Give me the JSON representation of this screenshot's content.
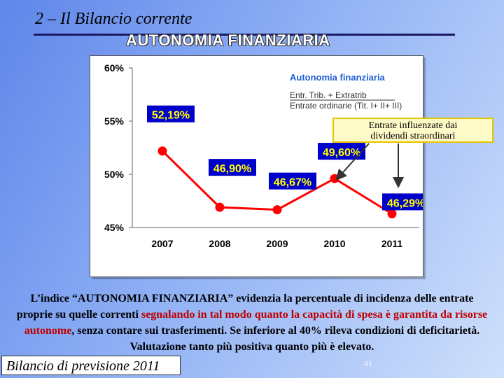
{
  "header": {
    "title": "2 – Il Bilancio corrente",
    "subtitle": "AUTONOMIA FINANZIARIA"
  },
  "chart_data": {
    "type": "line",
    "x": [
      "2007",
      "2008",
      "2009",
      "2010",
      "2011"
    ],
    "values": [
      52.19,
      46.9,
      46.67,
      49.6,
      46.29
    ],
    "data_labels": [
      "52,19%",
      "46,90%",
      "46,67%",
      "49,60%",
      "46,29%"
    ],
    "yticks": [
      "45%",
      "50%",
      "55%",
      "60%"
    ],
    "ylim": [
      45,
      60
    ],
    "legend_title": "Autonomia finanziaria",
    "legend_lines": [
      "Entr. Trib. + Extratrib",
      "Entrate ordinarie (Tit. I+ II+ III)"
    ],
    "grid": false,
    "colors": {
      "line": "#ff0000",
      "label_bg": "#0000cc",
      "label_text": "#ffff00",
      "legend_text": "#1f5fd6"
    }
  },
  "annotation": {
    "text_line1": "Entrate influenzate dai",
    "text_line2": "dividendi straordinari"
  },
  "description": {
    "part1": "L’indice “AUTONOMIA FINANZIARIA” evidenzia la percentuale di incidenza delle entrate proprie su quelle correnti ",
    "part2": "segnalando in tal modo quanto la capacità di spesa è garantita da risorse autonome",
    "part3": ", senza contare sui trasferimenti. Se inferiore al 40% rileva condizioni di deficitarietà. Valutazione tanto più positiva quanto più è elevato."
  },
  "footer": {
    "label": "Bilancio di previsione 2011",
    "page_number": "41"
  }
}
